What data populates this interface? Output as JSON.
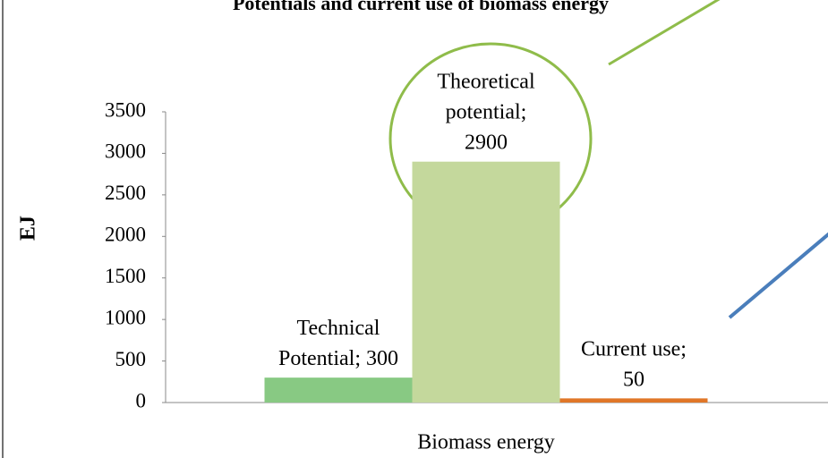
{
  "chart_data": {
    "type": "bar",
    "title": "Potentials and current use of biomass energy",
    "y_label": "EJ",
    "categories": [
      "Biomass energy"
    ],
    "series": [
      {
        "color": "#88c983",
        "values": [
          300
        ],
        "value_labels": [
          "Technical Potential; 300"
        ]
      },
      {
        "color": "#c4d89c",
        "values": [
          2900
        ],
        "value_labels": [
          "Theoretical potential; 2900"
        ]
      },
      {
        "color": "#e07628",
        "values": [
          50
        ],
        "value_labels": [
          "Current use; 50"
        ]
      }
    ],
    "ylim": [
      0,
      3500
    ],
    "yticks": [
      0,
      500,
      1000,
      1500,
      2000,
      2500,
      3000,
      3500
    ],
    "grid": false
  }
}
